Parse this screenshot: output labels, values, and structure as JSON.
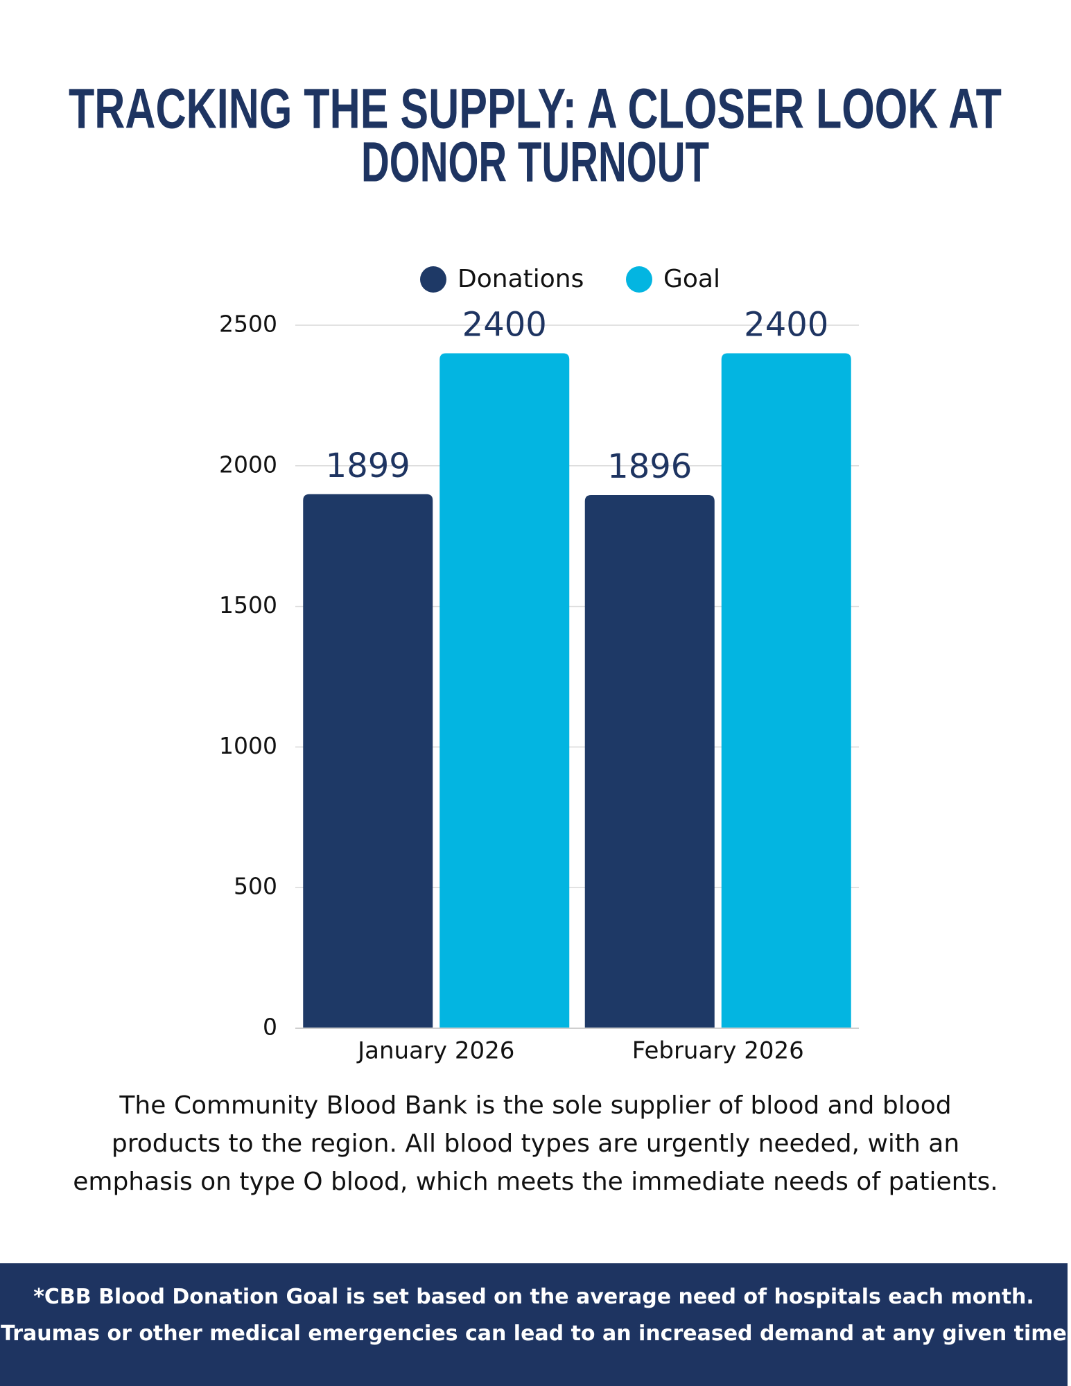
{
  "chart_data": {
    "type": "bar",
    "title": [
      "TRACKING THE SUPPLY: A CLOSER LOOK AT",
      "DONOR TURNOUT"
    ],
    "categories": [
      "January 2026",
      "February 2026"
    ],
    "series": [
      {
        "name": "Donations",
        "color": "#1e3966",
        "values": [
          1899,
          1896
        ]
      },
      {
        "name": "Goal",
        "color": "#03b5e1",
        "values": [
          2400,
          2400
        ]
      }
    ],
    "ylim": [
      0,
      2500
    ],
    "yticks": [
      0,
      500,
      1000,
      1500,
      2000,
      2500
    ],
    "grid": true,
    "legend": "top"
  },
  "paragraph": "The Community Blood Bank is the sole supplier of blood and blood products to the region. All blood types are urgently needed, with an emphasis on type O blood, which meets the immediate needs of patients.",
  "footer": [
    "*CBB Blood Donation Goal is set based on the average need of hospitals each month.",
    "Traumas or other medical emergencies can lead to an increased demand at any given time"
  ]
}
